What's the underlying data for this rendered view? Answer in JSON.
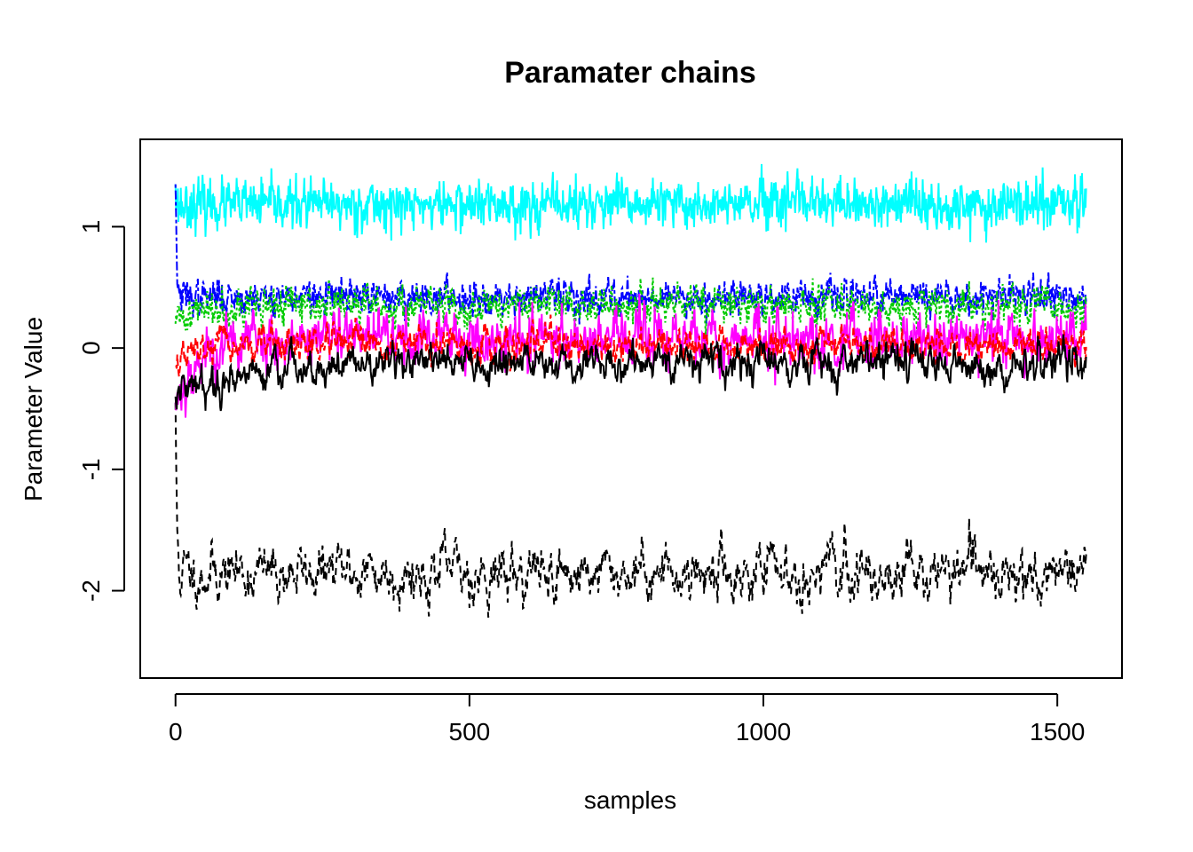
{
  "chart_data": {
    "type": "line",
    "title": "Paramater chains",
    "xlabel": "samples",
    "ylabel": "Parameter Value",
    "xlim": [
      -60,
      1610
    ],
    "ylim": [
      -2.72,
      1.72
    ],
    "xticks": [
      0,
      500,
      1000,
      1500
    ],
    "yticks": [
      -2,
      -1,
      0,
      1
    ],
    "xtick_labels": [
      "0",
      "500",
      "1000",
      "1500"
    ],
    "ytick_labels": [
      "-2",
      "-1",
      "0",
      "1"
    ],
    "grid": false,
    "n_samples": 1550,
    "series": [
      {
        "color": "#000000",
        "dash": "8,6",
        "mean": -1.85,
        "sd": 0.12,
        "start": -0.45,
        "burn": 6,
        "smooth": 0.75,
        "seed": 11
      },
      {
        "color": "#00ffff",
        "dash": "none",
        "mean": 1.18,
        "sd": 0.1,
        "start": 1.35,
        "burn": 4,
        "smooth": 0.2,
        "seed": 23
      },
      {
        "color": "#0000ff",
        "dash": "4,3,10,3",
        "mean": 0.42,
        "sd": 0.07,
        "start": 1.35,
        "burn": 6,
        "smooth": 0.35,
        "seed": 37
      },
      {
        "color": "#00cc00",
        "dash": "3,3",
        "mean": 0.35,
        "sd": 0.08,
        "start": 0.2,
        "burn": 80,
        "smooth": 0.45,
        "seed": 41
      },
      {
        "color": "#ff00ff",
        "dash": "none",
        "mean": 0.08,
        "sd": 0.12,
        "start": -0.45,
        "burn": 120,
        "smooth": 0.5,
        "seed": 53
      },
      {
        "color": "#ff0000",
        "dash": "8,4",
        "mean": 0.02,
        "sd": 0.07,
        "start": -0.15,
        "burn": 80,
        "smooth": 0.6,
        "seed": 67
      },
      {
        "color": "#000000",
        "dash": "none",
        "mean": -0.12,
        "sd": 0.08,
        "start": -0.4,
        "burn": 300,
        "smooth": 0.7,
        "seed": 79
      }
    ]
  }
}
